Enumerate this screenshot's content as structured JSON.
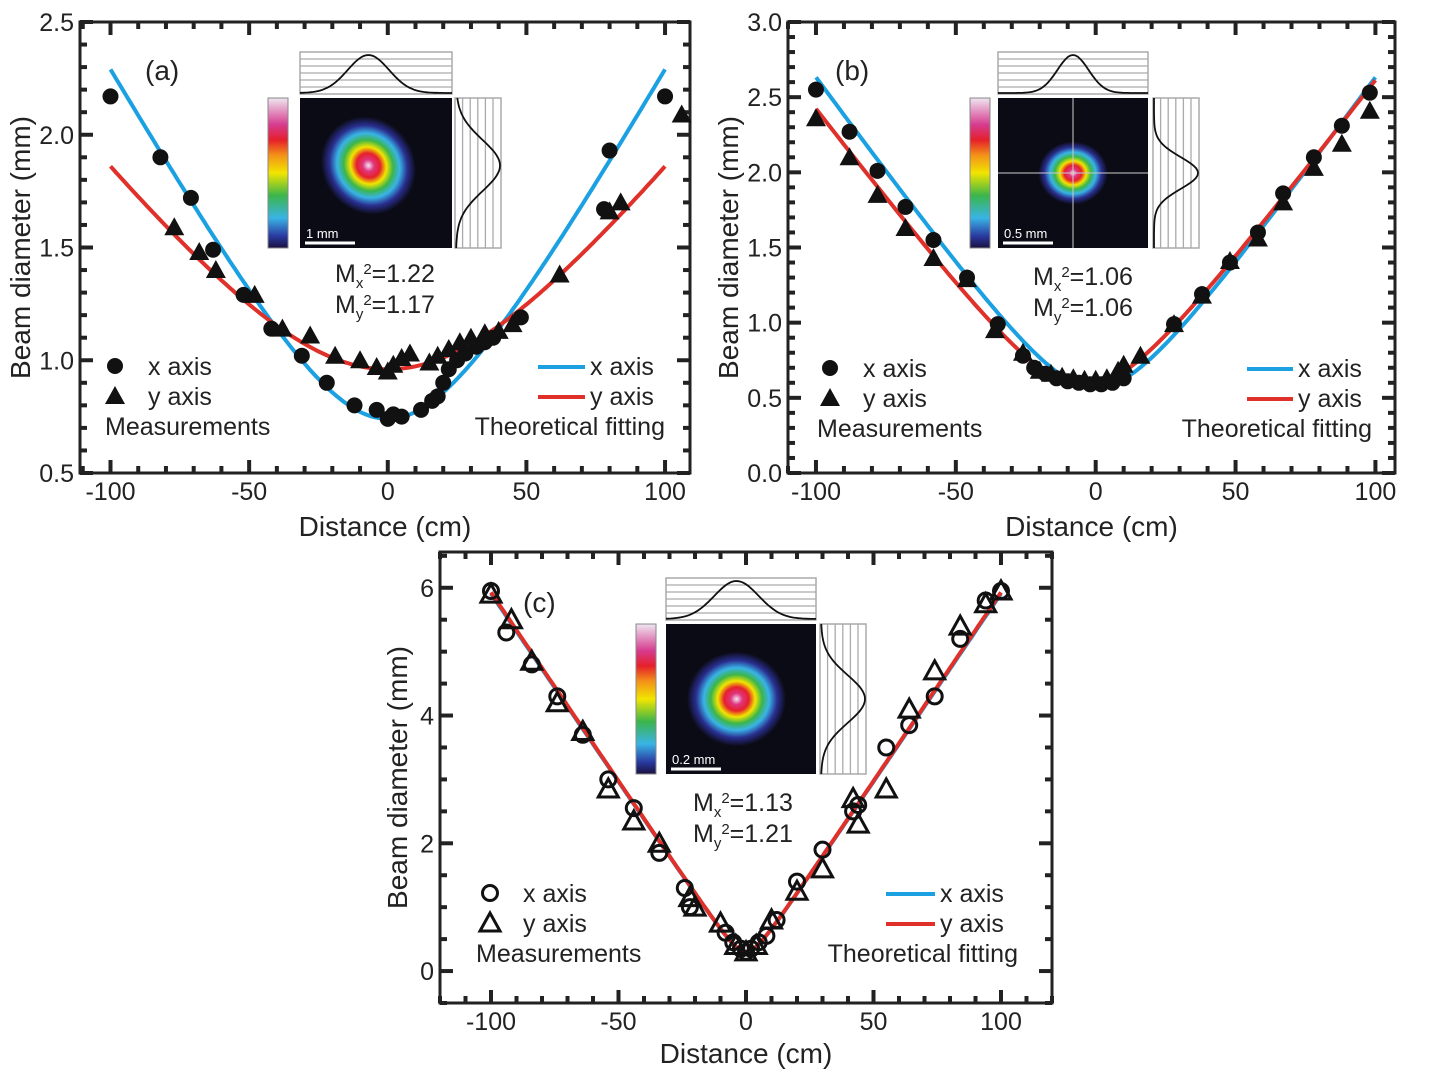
{
  "colors": {
    "x_fit": "#1ba1e2",
    "y_fit": "#e0302a",
    "markers": "#111111"
  },
  "chart_data": [
    {
      "type": "scatter",
      "panel_label": "(a)",
      "xlabel": "Distance (cm)",
      "ylabel": "Beam diameter (mm)",
      "xlim": [
        -111,
        109
      ],
      "ylim": [
        0.5,
        2.5
      ],
      "xticks": [
        -100,
        -50,
        0,
        50,
        100
      ],
      "yticks": [
        0.5,
        1.0,
        1.5,
        2.0,
        2.5
      ],
      "ytick_labels": [
        "0.5",
        "1.0",
        "1.5",
        "2.0",
        "2.5"
      ],
      "marker_fill": "filled",
      "inset": {
        "scale_bar": "1 mm",
        "mx2": "1.22",
        "my2": "1.17",
        "crosshair": false
      },
      "legend": {
        "x_marker": "x axis",
        "y_marker": "y axis",
        "measurements": "Measurements",
        "x_line": "x axis",
        "y_line": "y axis",
        "fitting": "Theoretical fitting"
      },
      "measurements_x": [
        [
          -100,
          2.17
        ],
        [
          -82,
          1.9
        ],
        [
          -71,
          1.72
        ],
        [
          -63,
          1.49
        ],
        [
          -52,
          1.29
        ],
        [
          -42,
          1.14
        ],
        [
          -31,
          1.02
        ],
        [
          -22,
          0.9
        ],
        [
          -12,
          0.8
        ],
        [
          -4,
          0.78
        ],
        [
          0,
          0.74
        ],
        [
          2,
          0.76
        ],
        [
          5,
          0.75
        ],
        [
          12,
          0.78
        ],
        [
          16,
          0.82
        ],
        [
          18,
          0.84
        ],
        [
          20,
          0.9
        ],
        [
          22,
          0.96
        ],
        [
          25,
          1.0
        ],
        [
          28,
          1.03
        ],
        [
          32,
          1.06
        ],
        [
          35,
          1.08
        ],
        [
          38,
          1.1
        ],
        [
          48,
          1.19
        ],
        [
          78,
          1.67
        ],
        [
          80,
          1.93
        ],
        [
          100,
          2.17
        ]
      ],
      "measurements_y": [
        [
          -77,
          1.59
        ],
        [
          -68,
          1.48
        ],
        [
          -62,
          1.4
        ],
        [
          -48,
          1.29
        ],
        [
          -38,
          1.14
        ],
        [
          -28,
          1.11
        ],
        [
          -19,
          1.02
        ],
        [
          -10,
          1.0
        ],
        [
          -4,
          0.97
        ],
        [
          0,
          0.95
        ],
        [
          2,
          0.98
        ],
        [
          5,
          1.01
        ],
        [
          8,
          1.03
        ],
        [
          15,
          0.99
        ],
        [
          18,
          1.02
        ],
        [
          22,
          1.05
        ],
        [
          26,
          1.08
        ],
        [
          30,
          1.1
        ],
        [
          35,
          1.12
        ],
        [
          40,
          1.13
        ],
        [
          45,
          1.16
        ],
        [
          62,
          1.38
        ],
        [
          80,
          1.66
        ],
        [
          84,
          1.7
        ],
        [
          106,
          2.09
        ]
      ],
      "fit_x": {
        "w0": 0.74,
        "z0": 0,
        "theta": 0.02167
      },
      "fit_y": {
        "w0": 0.96,
        "z0": 0,
        "theta": 0.01593
      }
    },
    {
      "type": "scatter",
      "panel_label": "(b)",
      "xlabel": "Distance (cm)",
      "ylabel": "Beam diameter (mm)",
      "xlim": [
        -110,
        107
      ],
      "ylim": [
        0,
        3
      ],
      "xticks": [
        -100,
        -50,
        0,
        50,
        100
      ],
      "yticks": [
        0,
        0.5,
        1.0,
        1.5,
        2.0,
        2.5,
        3.0
      ],
      "ytick_labels": [
        "0.0",
        "0.5",
        "1.0",
        "1.5",
        "2.0",
        "2.5",
        "3.0"
      ],
      "marker_fill": "filled",
      "inset": {
        "scale_bar": "0.5 mm",
        "mx2": "1.06",
        "my2": "1.06",
        "crosshair": true
      },
      "legend": {
        "x_marker": "x axis",
        "y_marker": "y axis",
        "measurements": "Measurements",
        "x_line": "x axis",
        "y_line": "y axis",
        "fitting": "Theoretical fitting"
      },
      "measurements_x": [
        [
          -100,
          2.55
        ],
        [
          -88,
          2.27
        ],
        [
          -78,
          2.01
        ],
        [
          -68,
          1.77
        ],
        [
          -58,
          1.55
        ],
        [
          -46,
          1.3
        ],
        [
          -35,
          0.99
        ],
        [
          -26,
          0.78
        ],
        [
          -22,
          0.7
        ],
        [
          -18,
          0.66
        ],
        [
          -14,
          0.63
        ],
        [
          -10,
          0.61
        ],
        [
          -6,
          0.6
        ],
        [
          -2,
          0.59
        ],
        [
          2,
          0.59
        ],
        [
          6,
          0.6
        ],
        [
          10,
          0.63
        ],
        [
          28,
          0.99
        ],
        [
          38,
          1.19
        ],
        [
          48,
          1.4
        ],
        [
          58,
          1.6
        ],
        [
          67,
          1.86
        ],
        [
          78,
          2.1
        ],
        [
          88,
          2.31
        ],
        [
          98,
          2.53
        ]
      ],
      "measurements_y": [
        [
          -100,
          2.36
        ],
        [
          -88,
          2.1
        ],
        [
          -78,
          1.85
        ],
        [
          -68,
          1.63
        ],
        [
          -58,
          1.43
        ],
        [
          -46,
          1.29
        ],
        [
          -36,
          0.95
        ],
        [
          -26,
          0.8
        ],
        [
          -20,
          0.68
        ],
        [
          -16,
          0.66
        ],
        [
          -12,
          0.64
        ],
        [
          -8,
          0.63
        ],
        [
          -4,
          0.62
        ],
        [
          0,
          0.62
        ],
        [
          4,
          0.63
        ],
        [
          8,
          0.68
        ],
        [
          10,
          0.72
        ],
        [
          16,
          0.78
        ],
        [
          28,
          0.99
        ],
        [
          38,
          1.18
        ],
        [
          48,
          1.41
        ],
        [
          58,
          1.56
        ],
        [
          67,
          1.8
        ],
        [
          78,
          2.03
        ],
        [
          88,
          2.19
        ],
        [
          98,
          2.41
        ]
      ],
      "fit_x": {
        "w0": 0.57,
        "z0": 0,
        "theta": 0.0257
      },
      "fit_y": {
        "w0": 0.58,
        "z0": -4,
        "theta": 0.0245
      }
    },
    {
      "type": "scatter",
      "panel_label": "(c)",
      "xlabel": "Distance (cm)",
      "ylabel": "Beam diameter (mm)",
      "xlim": [
        -120,
        120
      ],
      "ylim": [
        -0.5,
        6.56
      ],
      "xticks": [
        -100,
        -50,
        0,
        50,
        100
      ],
      "yticks": [
        0,
        2,
        4,
        6
      ],
      "ytick_labels": [
        "0",
        "2",
        "4",
        "6"
      ],
      "marker_fill": "open",
      "inset": {
        "scale_bar": "0.2 mm",
        "mx2": "1.13",
        "my2": "1.21",
        "crosshair": false
      },
      "legend": {
        "x_marker": "x axis",
        "y_marker": "y axis",
        "measurements": "Measurements",
        "x_line": "x axis",
        "y_line": "y axis",
        "fitting": "Theoretical fitting"
      },
      "measurements_x": [
        [
          -100,
          5.95
        ],
        [
          -94,
          5.3
        ],
        [
          -84,
          4.8
        ],
        [
          -74,
          4.3
        ],
        [
          -64,
          3.7
        ],
        [
          -54,
          3.0
        ],
        [
          -44,
          2.55
        ],
        [
          -34,
          1.85
        ],
        [
          -24,
          1.3
        ],
        [
          -22,
          1.0
        ],
        [
          -8,
          0.6
        ],
        [
          -5,
          0.45
        ],
        [
          -2,
          0.35
        ],
        [
          0,
          0.3
        ],
        [
          2,
          0.35
        ],
        [
          5,
          0.45
        ],
        [
          8,
          0.55
        ],
        [
          12,
          0.8
        ],
        [
          20,
          1.4
        ],
        [
          30,
          1.9
        ],
        [
          42,
          2.5
        ],
        [
          44,
          2.6
        ],
        [
          55,
          3.5
        ],
        [
          64,
          3.85
        ],
        [
          74,
          4.3
        ],
        [
          84,
          5.2
        ],
        [
          94,
          5.8
        ],
        [
          100,
          5.95
        ]
      ],
      "measurements_y": [
        [
          -100,
          5.9
        ],
        [
          -92,
          5.5
        ],
        [
          -84,
          4.85
        ],
        [
          -74,
          4.2
        ],
        [
          -64,
          3.75
        ],
        [
          -54,
          2.85
        ],
        [
          -44,
          2.35
        ],
        [
          -34,
          2.0
        ],
        [
          -22,
          1.15
        ],
        [
          -20,
          1.0
        ],
        [
          -10,
          0.75
        ],
        [
          -4,
          0.4
        ],
        [
          0,
          0.3
        ],
        [
          4,
          0.4
        ],
        [
          10,
          0.8
        ],
        [
          20,
          1.25
        ],
        [
          30,
          1.6
        ],
        [
          42,
          2.7
        ],
        [
          44,
          2.3
        ],
        [
          55,
          2.85
        ],
        [
          64,
          4.1
        ],
        [
          74,
          4.7
        ],
        [
          84,
          5.4
        ],
        [
          94,
          5.75
        ],
        [
          100,
          5.95
        ]
      ],
      "fit_x": {
        "w0": 0.3,
        "z0": 0,
        "theta": 0.059
      },
      "fit_y": {
        "w0": 0.3,
        "z0": 0,
        "theta": 0.0592
      }
    }
  ]
}
